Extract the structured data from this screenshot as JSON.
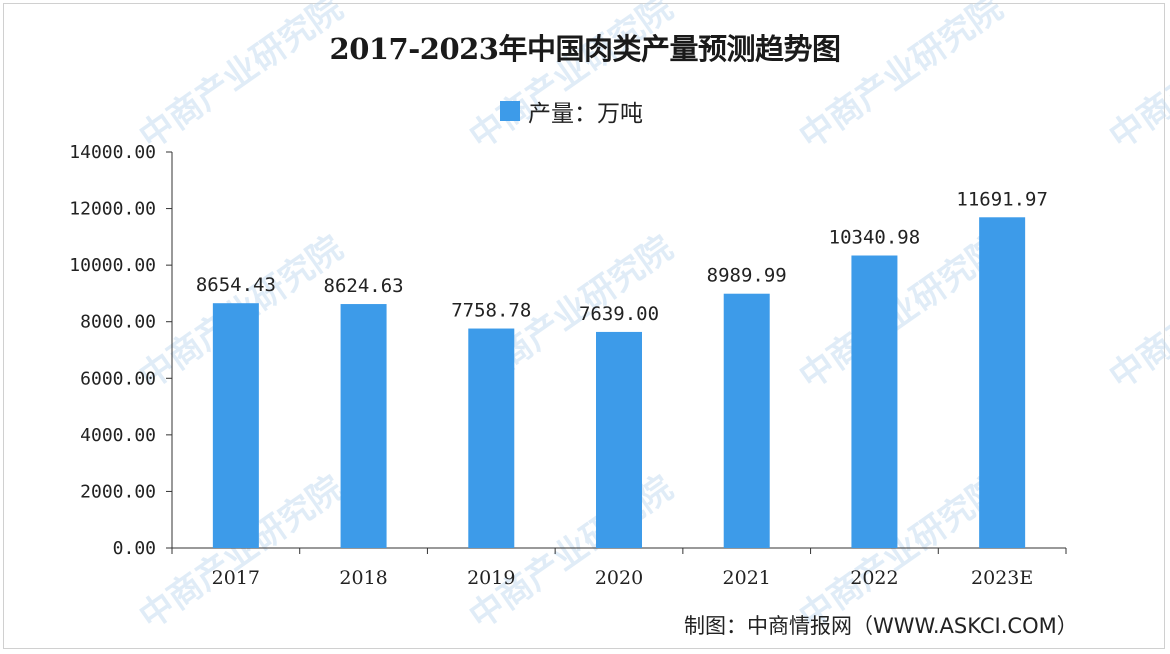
{
  "chart_data": {
    "type": "bar",
    "title": "2017-2023年中国肉类产量预测趋势图",
    "legend": {
      "label": "产量：万吨",
      "position": "top-center"
    },
    "categories": [
      "2017",
      "2018",
      "2019",
      "2020",
      "2021",
      "2022",
      "2023E"
    ],
    "series": [
      {
        "name": "产量：万吨",
        "values": [
          8654.43,
          8624.63,
          7758.78,
          7639.0,
          8989.99,
          10340.98,
          11691.97
        ],
        "value_labels": [
          "8654.43",
          "8624.63",
          "7758.78",
          "7639.00",
          "8989.99",
          "10340.98",
          "11691.97"
        ]
      }
    ],
    "ylim": [
      0,
      14000
    ],
    "yticks": [
      0,
      2000,
      4000,
      6000,
      8000,
      10000,
      12000,
      14000
    ],
    "ytick_labels": [
      "0.00",
      "2000.00",
      "4000.00",
      "6000.00",
      "8000.00",
      "10000.00",
      "12000.00",
      "14000.00"
    ],
    "grid": false,
    "xlabel": "",
    "ylabel": "",
    "colors": {
      "bar": "#3d9be9"
    }
  },
  "source": "制图：中商情报网（WWW.ASKCI.COM）",
  "watermark_text": "中商产业研究院"
}
